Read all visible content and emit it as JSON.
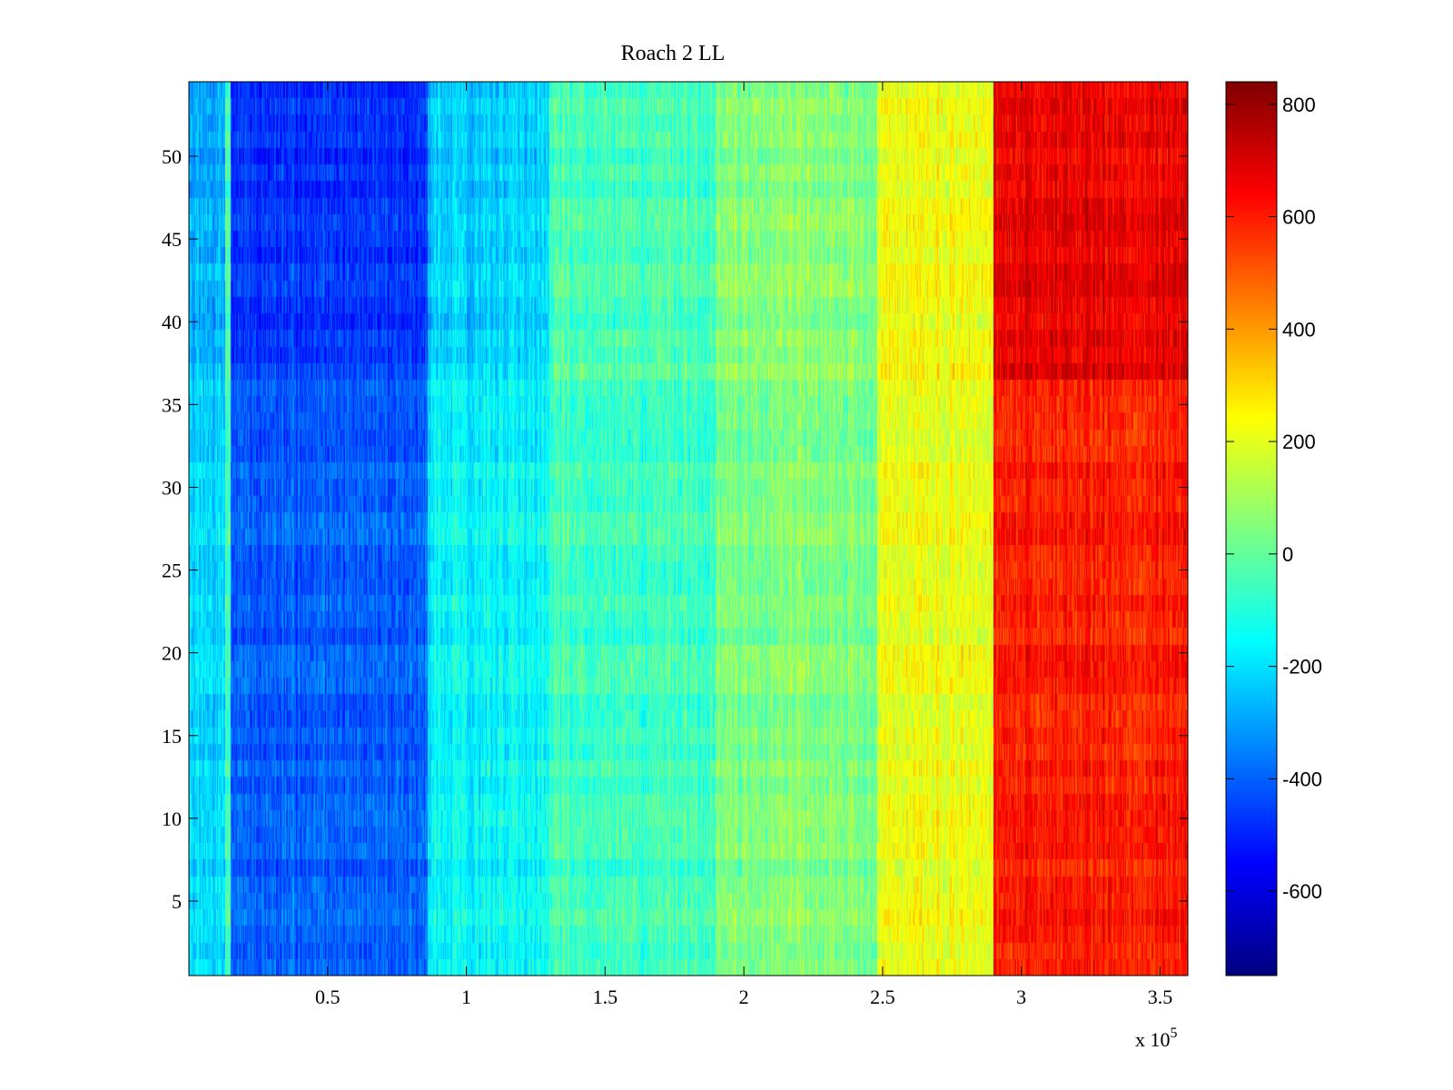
{
  "chart_data": {
    "type": "heatmap",
    "title": "Roach 2 LL",
    "xlabel": "",
    "ylabel": "",
    "x_multiplier_label": "x 10",
    "x_multiplier_exponent": "5",
    "xlim": [
      0,
      3.6
    ],
    "ylim": [
      0.5,
      54.5
    ],
    "x_ticks": [
      0.5,
      1,
      1.5,
      2,
      2.5,
      3,
      3.5
    ],
    "x_tick_labels": [
      "0.5",
      "1",
      "1.5",
      "2",
      "2.5",
      "3",
      "3.5"
    ],
    "y_ticks": [
      5,
      10,
      15,
      20,
      25,
      30,
      35,
      40,
      45,
      50
    ],
    "y_tick_labels": [
      "5",
      "10",
      "15",
      "20",
      "25",
      "30",
      "35",
      "40",
      "45",
      "50"
    ],
    "rows": 54,
    "colormap": "jet",
    "clim": [
      -750,
      840
    ],
    "colorbar_ticks": [
      -600,
      -400,
      -200,
      0,
      200,
      400,
      600,
      800
    ],
    "colorbar_tick_labels": [
      "-600",
      "-400",
      "-200",
      "0",
      "200",
      "400",
      "600",
      "800"
    ],
    "column_bands": [
      {
        "x_start": 0.0,
        "x_end": 0.13,
        "mean_value": -220
      },
      {
        "x_start": 0.13,
        "x_end": 0.15,
        "mean_value": -40
      },
      {
        "x_start": 0.15,
        "x_end": 0.86,
        "mean_value": -400
      },
      {
        "x_start": 0.86,
        "x_end": 1.3,
        "mean_value": -160
      },
      {
        "x_start": 1.3,
        "x_end": 1.9,
        "mean_value": -60
      },
      {
        "x_start": 1.9,
        "x_end": 2.48,
        "mean_value": 40
      },
      {
        "x_start": 2.48,
        "x_end": 2.9,
        "mean_value": 210
      },
      {
        "x_start": 2.9,
        "x_end": 3.6,
        "mean_value": 600
      }
    ],
    "row_bands": [
      {
        "y_start": 0.5,
        "y_end": 36.5,
        "offset": 0
      },
      {
        "y_start": 36.5,
        "y_end": 54.5,
        "offset": 1
      }
    ]
  }
}
